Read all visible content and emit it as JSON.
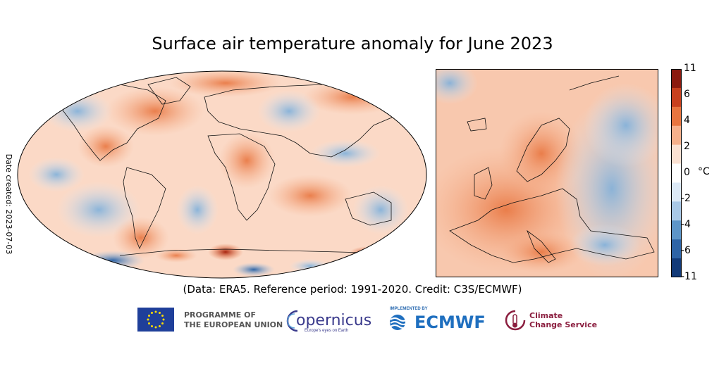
{
  "title": "Surface air temperature anomaly for June 2023",
  "date_created": "Date created: 2023-07-03",
  "credit": "(Data: ERA5.  Reference period: 1991-2020.  Credit: C3S/ECMWF)",
  "colorbar": {
    "unit": "°C",
    "ticks": [
      "11",
      "6",
      "4",
      "2",
      "0",
      "-2",
      "-4",
      "-6",
      "-11"
    ],
    "colors": [
      "#8b1a0f",
      "#c8401e",
      "#e8753f",
      "#f6b08b",
      "#fbe1d2",
      "#ffffff",
      "#dce9f6",
      "#a8c8e6",
      "#5d95c8",
      "#2e64a6",
      "#123a78"
    ]
  },
  "logos": {
    "eu_line1": "PROGRAMME OF",
    "eu_line2": "THE EUROPEAN UNION",
    "copernicus": "opernicus",
    "copernicus_tagline": "Europe's eyes on Earth",
    "implemented_by": "IMPLEMENTED BY",
    "ecmwf": "ECMWF",
    "ccs_line1": "Climate",
    "ccs_line2": "Change Service"
  }
}
